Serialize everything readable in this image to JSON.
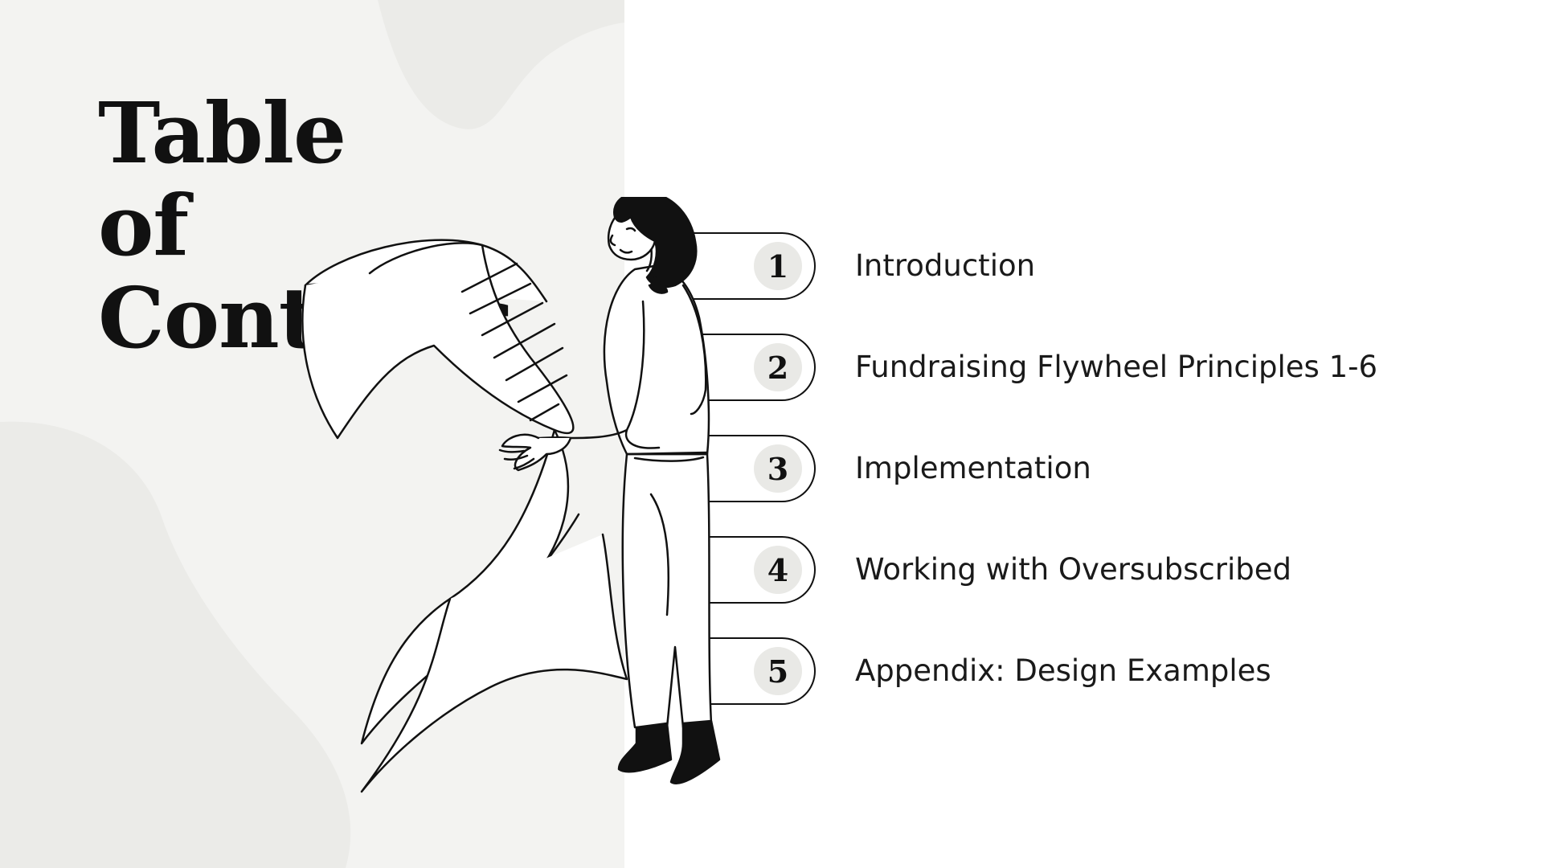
{
  "title": {
    "line1": "Table",
    "line2": "of",
    "line3": "Contents"
  },
  "items": [
    {
      "number": "1",
      "label": "Introduction"
    },
    {
      "number": "2",
      "label": "Fundraising Flywheel Principles 1-6"
    },
    {
      "number": "3",
      "label": "Implementation"
    },
    {
      "number": "4",
      "label": "Working with Oversubscribed"
    },
    {
      "number": "5",
      "label": "Appendix: Design Examples"
    }
  ],
  "colors": {
    "left_panel": "#f3f3f1",
    "blob": "#ebebe8",
    "ink": "#111111",
    "number_circle": "#e9e9e6"
  },
  "illustration": "woman-reading-scroll"
}
